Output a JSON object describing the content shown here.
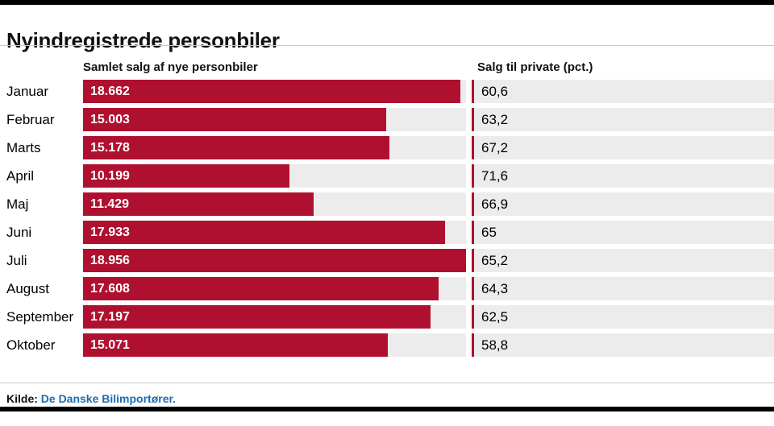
{
  "title": "Nyindregistrede personbiler",
  "columns": {
    "left_header": "Samlet salg af nye personbiler",
    "right_header": "Salg til private (pct.)"
  },
  "source": {
    "prefix": "Kilde:",
    "text": "De Danske Bilimportører."
  },
  "colors": {
    "bar": "#b01030",
    "track": "#ececec",
    "source_link": "#1b6cb1",
    "rule": "#c8c8c8",
    "frame": "#000000"
  },
  "chart_data": {
    "type": "bar",
    "orientation": "horizontal",
    "title": "Nyindregistrede personbiler",
    "categories": [
      "Januar",
      "Februar",
      "Marts",
      "April",
      "Maj",
      "Juni",
      "Juli",
      "August",
      "September",
      "Oktober"
    ],
    "series": [
      {
        "name": "Samlet salg af nye personbiler",
        "values": [
          18662,
          15003,
          15178,
          10199,
          11429,
          17933,
          18956,
          17608,
          17197,
          15071
        ],
        "labels": [
          "18.662",
          "15.003",
          "15.178",
          "10.199",
          "11.429",
          "17.933",
          "18.956",
          "17.608",
          "17.197",
          "15.071"
        ]
      },
      {
        "name": "Salg til private (pct.)",
        "values": [
          60.6,
          63.2,
          67.2,
          71.6,
          66.9,
          65,
          65.2,
          64.3,
          62.5,
          58.8
        ],
        "labels": [
          "60,6",
          "63,2",
          "67,2",
          "71,6",
          "66,9",
          "65",
          "65,2",
          "64,3",
          "62,5",
          "58,8"
        ]
      }
    ],
    "scale_max": 18956,
    "xlim": [
      0,
      18956
    ],
    "grid": false,
    "legend": "none",
    "source": "Kilde: De Danske Bilimportører."
  }
}
